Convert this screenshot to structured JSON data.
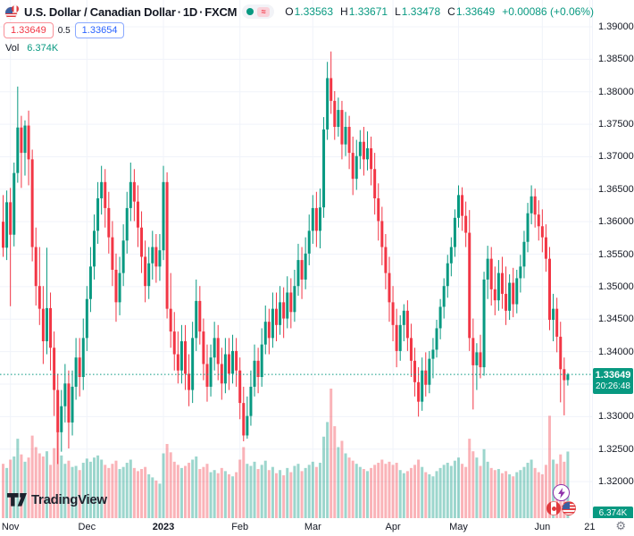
{
  "header": {
    "title": {
      "name": "U.S. Dollar / Canadian Dollar",
      "sep": "·",
      "interval": "1D",
      "exchange": "FXCM"
    },
    "status": {
      "delay_glyph": "≈"
    },
    "ohlc": {
      "o_label": "O",
      "o": "1.33563",
      "h_label": "H",
      "h": "1.33671",
      "l_label": "L",
      "l": "1.33478",
      "c_label": "C",
      "c": "1.33649",
      "change": "+0.00086 (+0.06%)"
    },
    "bid": "1.33649",
    "spread": "0.5",
    "ask": "1.33654",
    "vol_label": "Vol",
    "vol_value": "6.374K"
  },
  "watermark": {
    "text": "TradingView"
  },
  "price_axis": {
    "volume_badge": "6.374K"
  },
  "price_badge": {
    "price": "1.33649",
    "countdown": "20:26:48"
  },
  "ui": {
    "gear_glyph": "⚙"
  },
  "colors": {
    "up": "#089981",
    "down": "#F23645",
    "vol_up": "rgba(8,153,129,0.40)",
    "vol_down": "rgba(242,54,69,0.38)",
    "grid": "#F0F3FA",
    "axis_text": "#131722",
    "badge_bg": "#089981",
    "bid": "#F23645",
    "ask": "#2962FF",
    "accent_purple": "#9031AA",
    "separator": "#E0E3EB"
  },
  "chart_data": {
    "type": "candlestick",
    "symbol": "U.S. Dollar / Canadian Dollar",
    "interval": "1D",
    "exchange": "FXCM",
    "current_price": 1.33649,
    "countdown": "20:26:48",
    "last_volume": 6374,
    "price_ticks": [
      "1.39000",
      "1.38500",
      "1.38000",
      "1.37500",
      "1.37000",
      "1.36500",
      "1.36000",
      "1.35500",
      "1.35000",
      "1.34500",
      "1.34000",
      "1.33000",
      "1.32500",
      "1.32000"
    ],
    "hidden_tick": "1.33500",
    "price_range_visible": [
      1.32,
      1.39
    ],
    "grid_step": 0.005,
    "time_ticks": [
      {
        "label": "Nov",
        "index": 2
      },
      {
        "label": "Dec",
        "index": 23
      },
      {
        "label": "2023",
        "index": 44,
        "bold": true
      },
      {
        "label": "Feb",
        "index": 65
      },
      {
        "label": "Mar",
        "index": 85
      },
      {
        "label": "Apr",
        "index": 107
      },
      {
        "label": "May",
        "index": 125
      },
      {
        "label": "Jun",
        "index": 148
      },
      {
        "label": "21",
        "index": 161
      }
    ],
    "candles": [
      [
        1.36,
        1.3641,
        1.3546,
        1.356,
        5200
      ],
      [
        1.356,
        1.3648,
        1.3541,
        1.363,
        4800
      ],
      [
        1.363,
        1.3652,
        1.347,
        1.358,
        5600
      ],
      [
        1.358,
        1.3691,
        1.3562,
        1.3675,
        5900
      ],
      [
        1.3675,
        1.3808,
        1.366,
        1.3745,
        7600
      ],
      [
        1.3745,
        1.3763,
        1.3652,
        1.3706,
        6100
      ],
      [
        1.3706,
        1.3756,
        1.3671,
        1.3748,
        5400
      ],
      [
        1.3748,
        1.3771,
        1.3656,
        1.3696,
        5800
      ],
      [
        1.3696,
        1.3711,
        1.3539,
        1.3561,
        7900
      ],
      [
        1.3561,
        1.3591,
        1.3471,
        1.3501,
        6800
      ],
      [
        1.3501,
        1.3561,
        1.3441,
        1.3466,
        6200
      ],
      [
        1.3466,
        1.3501,
        1.3381,
        1.3416,
        5900
      ],
      [
        1.3416,
        1.356,
        1.3396,
        1.3467,
        6400
      ],
      [
        1.3467,
        1.3491,
        1.3371,
        1.3406,
        5100
      ],
      [
        1.3406,
        1.3431,
        1.3301,
        1.3341,
        6700
      ],
      [
        1.3341,
        1.3366,
        1.3227,
        1.3276,
        8300
      ],
      [
        1.3276,
        1.3341,
        1.3246,
        1.3316,
        6000
      ],
      [
        1.3316,
        1.3381,
        1.3291,
        1.3351,
        5200
      ],
      [
        1.3351,
        1.3371,
        1.3251,
        1.3291,
        5500
      ],
      [
        1.3291,
        1.3371,
        1.3271,
        1.3346,
        4900
      ],
      [
        1.3346,
        1.3421,
        1.3326,
        1.3391,
        5000
      ],
      [
        1.3391,
        1.3421,
        1.3331,
        1.3361,
        4600
      ],
      [
        1.3361,
        1.3451,
        1.3341,
        1.3421,
        5300
      ],
      [
        1.3421,
        1.3501,
        1.3401,
        1.3481,
        5700
      ],
      [
        1.3481,
        1.3561,
        1.3461,
        1.3531,
        5400
      ],
      [
        1.3531,
        1.3611,
        1.3511,
        1.3586,
        5800
      ],
      [
        1.3586,
        1.3661,
        1.3566,
        1.3636,
        6000
      ],
      [
        1.3636,
        1.3686,
        1.3611,
        1.3661,
        5600
      ],
      [
        1.3661,
        1.3681,
        1.3591,
        1.3621,
        5100
      ],
      [
        1.3621,
        1.3646,
        1.3551,
        1.3576,
        4800
      ],
      [
        1.3576,
        1.3601,
        1.3501,
        1.3526,
        5200
      ],
      [
        1.3526,
        1.3551,
        1.3446,
        1.3476,
        5500
      ],
      [
        1.3476,
        1.3546,
        1.3456,
        1.3521,
        4700
      ],
      [
        1.3521,
        1.3596,
        1.3501,
        1.3571,
        4900
      ],
      [
        1.3571,
        1.3646,
        1.3551,
        1.3621,
        5300
      ],
      [
        1.3621,
        1.3691,
        1.3601,
        1.3661,
        5600
      ],
      [
        1.3661,
        1.3681,
        1.3601,
        1.3631,
        4800
      ],
      [
        1.3631,
        1.3656,
        1.3561,
        1.3591,
        4500
      ],
      [
        1.3591,
        1.3616,
        1.3521,
        1.3546,
        4700
      ],
      [
        1.3546,
        1.3571,
        1.3476,
        1.3501,
        4900
      ],
      [
        1.3501,
        1.3561,
        1.3481,
        1.3536,
        4200
      ],
      [
        1.3536,
        1.3586,
        1.3511,
        1.3561,
        3900
      ],
      [
        1.3561,
        1.3581,
        1.3506,
        1.3531,
        3600
      ],
      [
        1.3531,
        1.3581,
        1.3509,
        1.3556,
        3300
      ],
      [
        1.3556,
        1.3686,
        1.3541,
        1.3661,
        6200
      ],
      [
        1.3661,
        1.3676,
        1.3451,
        1.3466,
        7100
      ],
      [
        1.3466,
        1.3521,
        1.3406,
        1.3431,
        6300
      ],
      [
        1.3431,
        1.3461,
        1.3371,
        1.3396,
        5400
      ],
      [
        1.3396,
        1.3431,
        1.3351,
        1.3371,
        5100
      ],
      [
        1.3371,
        1.3441,
        1.3351,
        1.3416,
        4800
      ],
      [
        1.3416,
        1.3441,
        1.3341,
        1.3366,
        5000
      ],
      [
        1.3366,
        1.3396,
        1.3316,
        1.3341,
        5300
      ],
      [
        1.3341,
        1.3446,
        1.3321,
        1.3421,
        5600
      ],
      [
        1.3421,
        1.3511,
        1.3401,
        1.3478,
        5900
      ],
      [
        1.3478,
        1.3501,
        1.3411,
        1.3431,
        4700
      ],
      [
        1.3431,
        1.3451,
        1.3356,
        1.3381,
        4900
      ],
      [
        1.3381,
        1.3411,
        1.3323,
        1.3346,
        5200
      ],
      [
        1.3346,
        1.3411,
        1.3331,
        1.3391,
        4400
      ],
      [
        1.3391,
        1.3446,
        1.3371,
        1.3421,
        4600
      ],
      [
        1.3421,
        1.3441,
        1.3356,
        1.3381,
        4300
      ],
      [
        1.3381,
        1.3406,
        1.3326,
        1.3351,
        4800
      ],
      [
        1.3351,
        1.3421,
        1.3336,
        1.3396,
        4500
      ],
      [
        1.3396,
        1.3421,
        1.3341,
        1.3366,
        4200
      ],
      [
        1.3366,
        1.3426,
        1.3351,
        1.3401,
        4000
      ],
      [
        1.3401,
        1.3421,
        1.3346,
        1.3371,
        4400
      ],
      [
        1.3371,
        1.3391,
        1.3296,
        1.3321,
        5600
      ],
      [
        1.3321,
        1.3346,
        1.3262,
        1.3271,
        6800
      ],
      [
        1.3271,
        1.3331,
        1.3266,
        1.3301,
        5200
      ],
      [
        1.3301,
        1.3371,
        1.3286,
        1.3346,
        5000
      ],
      [
        1.3346,
        1.3411,
        1.3331,
        1.3386,
        5400
      ],
      [
        1.3386,
        1.3406,
        1.3336,
        1.3361,
        4700
      ],
      [
        1.3361,
        1.3436,
        1.3346,
        1.3411,
        5100
      ],
      [
        1.3411,
        1.3471,
        1.3396,
        1.3446,
        5500
      ],
      [
        1.3446,
        1.3466,
        1.3396,
        1.3421,
        4600
      ],
      [
        1.3421,
        1.3491,
        1.3406,
        1.3466,
        4900
      ],
      [
        1.3466,
        1.3491,
        1.3416,
        1.3441,
        4300
      ],
      [
        1.3441,
        1.3501,
        1.3426,
        1.3476,
        4600
      ],
      [
        1.3476,
        1.3499,
        1.3421,
        1.3451,
        4100
      ],
      [
        1.3451,
        1.3516,
        1.3436,
        1.3491,
        4800
      ],
      [
        1.3491,
        1.3513,
        1.3436,
        1.3461,
        4400
      ],
      [
        1.3461,
        1.3526,
        1.3446,
        1.3501,
        5000
      ],
      [
        1.3501,
        1.3566,
        1.3486,
        1.3541,
        5200
      ],
      [
        1.3541,
        1.3561,
        1.3481,
        1.3511,
        4500
      ],
      [
        1.3511,
        1.3576,
        1.3496,
        1.3551,
        4800
      ],
      [
        1.3551,
        1.3611,
        1.3533,
        1.3586,
        5100
      ],
      [
        1.3586,
        1.3641,
        1.3566,
        1.3621,
        5400
      ],
      [
        1.3621,
        1.3646,
        1.3561,
        1.3586,
        4900
      ],
      [
        1.3586,
        1.3651,
        1.3559,
        1.3622,
        5300
      ],
      [
        1.3622,
        1.3761,
        1.3606,
        1.3742,
        7800
      ],
      [
        1.3742,
        1.3846,
        1.3726,
        1.3821,
        9200
      ],
      [
        1.3821,
        1.3862,
        1.3766,
        1.3786,
        12400
      ],
      [
        1.3786,
        1.3801,
        1.3726,
        1.3746,
        8800
      ],
      [
        1.3746,
        1.3791,
        1.3731,
        1.3772,
        6800
      ],
      [
        1.3772,
        1.3786,
        1.3696,
        1.3719,
        7400
      ],
      [
        1.3719,
        1.3769,
        1.3701,
        1.3746,
        6200
      ],
      [
        1.3746,
        1.3763,
        1.3681,
        1.3706,
        5800
      ],
      [
        1.3706,
        1.3731,
        1.3641,
        1.3666,
        5500
      ],
      [
        1.3666,
        1.3726,
        1.3649,
        1.3701,
        5200
      ],
      [
        1.3701,
        1.3741,
        1.3681,
        1.3723,
        4900
      ],
      [
        1.3723,
        1.3746,
        1.3671,
        1.3696,
        4700
      ],
      [
        1.3696,
        1.3739,
        1.3679,
        1.3713,
        4500
      ],
      [
        1.3713,
        1.3731,
        1.3656,
        1.3681,
        4800
      ],
      [
        1.3681,
        1.3706,
        1.3611,
        1.3636,
        5100
      ],
      [
        1.3636,
        1.3659,
        1.3571,
        1.3601,
        5300
      ],
      [
        1.3601,
        1.3623,
        1.3533,
        1.3561,
        5600
      ],
      [
        1.3561,
        1.3581,
        1.3496,
        1.3521,
        5200
      ],
      [
        1.3521,
        1.3546,
        1.3446,
        1.3476,
        5400
      ],
      [
        1.3476,
        1.3501,
        1.3416,
        1.3441,
        5100
      ],
      [
        1.3441,
        1.3466,
        1.3376,
        1.3401,
        5300
      ],
      [
        1.3401,
        1.3456,
        1.3386,
        1.3441,
        4600
      ],
      [
        1.3441,
        1.3473,
        1.3416,
        1.3463,
        4300
      ],
      [
        1.3463,
        1.3479,
        1.3401,
        1.3421,
        4500
      ],
      [
        1.3421,
        1.3443,
        1.3361,
        1.3386,
        4800
      ],
      [
        1.3386,
        1.3406,
        1.3331,
        1.3353,
        5100
      ],
      [
        1.3353,
        1.3376,
        1.33,
        1.3323,
        5600
      ],
      [
        1.3323,
        1.3391,
        1.3309,
        1.3371,
        4900
      ],
      [
        1.3371,
        1.3399,
        1.3331,
        1.3349,
        4400
      ],
      [
        1.3349,
        1.3401,
        1.3336,
        1.3389,
        4200
      ],
      [
        1.3389,
        1.3421,
        1.3359,
        1.3403,
        4000
      ],
      [
        1.3403,
        1.3449,
        1.3391,
        1.3436,
        4500
      ],
      [
        1.3436,
        1.3481,
        1.3419,
        1.3469,
        4800
      ],
      [
        1.3469,
        1.3513,
        1.3451,
        1.3501,
        5100
      ],
      [
        1.3501,
        1.3549,
        1.3483,
        1.3536,
        5300
      ],
      [
        1.3536,
        1.3576,
        1.3516,
        1.3561,
        5000
      ],
      [
        1.3561,
        1.3619,
        1.3546,
        1.3606,
        5500
      ],
      [
        1.3606,
        1.3656,
        1.3591,
        1.3641,
        5800
      ],
      [
        1.3641,
        1.3653,
        1.3586,
        1.3609,
        5200
      ],
      [
        1.3609,
        1.3631,
        1.3561,
        1.3583,
        4900
      ],
      [
        1.3583,
        1.3618,
        1.3401,
        1.3421,
        7600
      ],
      [
        1.3421,
        1.3451,
        1.3311,
        1.3379,
        6400
      ],
      [
        1.3379,
        1.3413,
        1.3341,
        1.3399,
        5800
      ],
      [
        1.3399,
        1.3426,
        1.3359,
        1.3376,
        5000
      ],
      [
        1.3376,
        1.3523,
        1.3363,
        1.3511,
        6600
      ],
      [
        1.3511,
        1.3563,
        1.3481,
        1.3543,
        5400
      ],
      [
        1.3543,
        1.3561,
        1.3471,
        1.3496,
        4800
      ],
      [
        1.3496,
        1.3531,
        1.3456,
        1.3479,
        4600
      ],
      [
        1.3479,
        1.3541,
        1.3463,
        1.3521,
        4700
      ],
      [
        1.3521,
        1.3546,
        1.3466,
        1.3489,
        4300
      ],
      [
        1.3489,
        1.3531,
        1.3441,
        1.3463,
        4500
      ],
      [
        1.3463,
        1.3519,
        1.3449,
        1.3506,
        4200
      ],
      [
        1.3506,
        1.3529,
        1.3453,
        1.3473,
        4000
      ],
      [
        1.3473,
        1.3526,
        1.3459,
        1.3513,
        4400
      ],
      [
        1.3513,
        1.3549,
        1.3491,
        1.3531,
        4600
      ],
      [
        1.3531,
        1.3586,
        1.3513,
        1.3569,
        4900
      ],
      [
        1.3569,
        1.3629,
        1.3553,
        1.3613,
        5300
      ],
      [
        1.3613,
        1.3656,
        1.3596,
        1.3639,
        5600
      ],
      [
        1.3639,
        1.3651,
        1.3591,
        1.3611,
        4800
      ],
      [
        1.3611,
        1.3633,
        1.3571,
        1.3593,
        4400
      ],
      [
        1.3593,
        1.3619,
        1.3553,
        1.3576,
        4200
      ],
      [
        1.3576,
        1.3596,
        1.3523,
        1.3543,
        5100
      ],
      [
        1.3543,
        1.3561,
        1.3433,
        1.3449,
        9800
      ],
      [
        1.3449,
        1.3489,
        1.3416,
        1.3466,
        5600
      ],
      [
        1.3466,
        1.3483,
        1.3399,
        1.3423,
        5200
      ],
      [
        1.3423,
        1.3446,
        1.3322,
        1.3373,
        6100
      ],
      [
        1.3373,
        1.3391,
        1.3302,
        1.3356,
        5400
      ],
      [
        1.33563,
        1.33671,
        1.33478,
        1.33649,
        6374
      ]
    ]
  }
}
